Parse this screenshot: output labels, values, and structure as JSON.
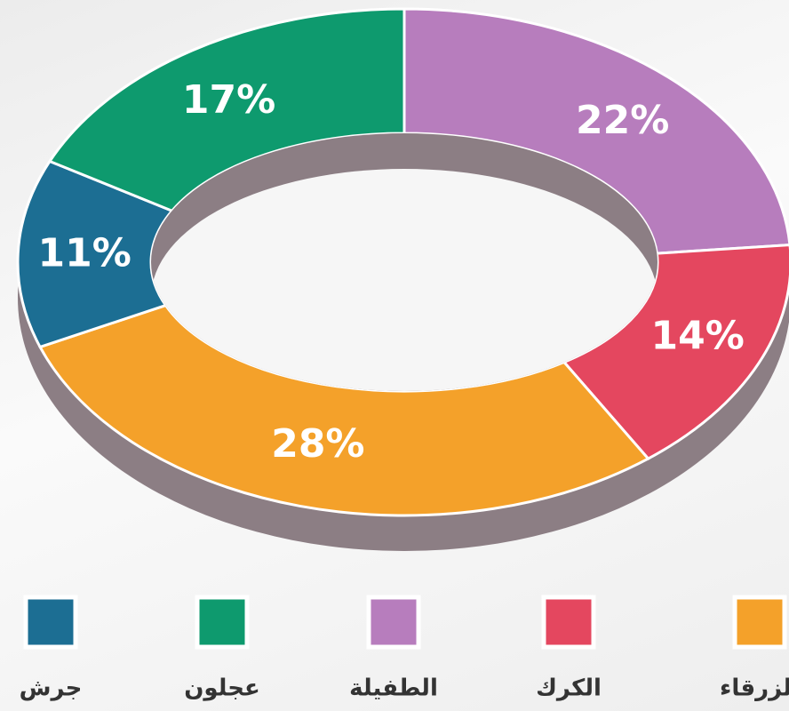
{
  "chart_data": {
    "type": "donut",
    "categories": [
      "الطفيلة",
      "الكرك",
      "الزرقاء",
      "جرش",
      "عجلون"
    ],
    "values": [
      22,
      14,
      28,
      11,
      17
    ],
    "value_labels": [
      "22%",
      "14%",
      "28%",
      "11%",
      "17%"
    ],
    "colors": [
      "#b77dbd",
      "#e4475f",
      "#f4a12a",
      "#1c6e93",
      "#0e9a6e"
    ],
    "legend": "bottom"
  }
}
